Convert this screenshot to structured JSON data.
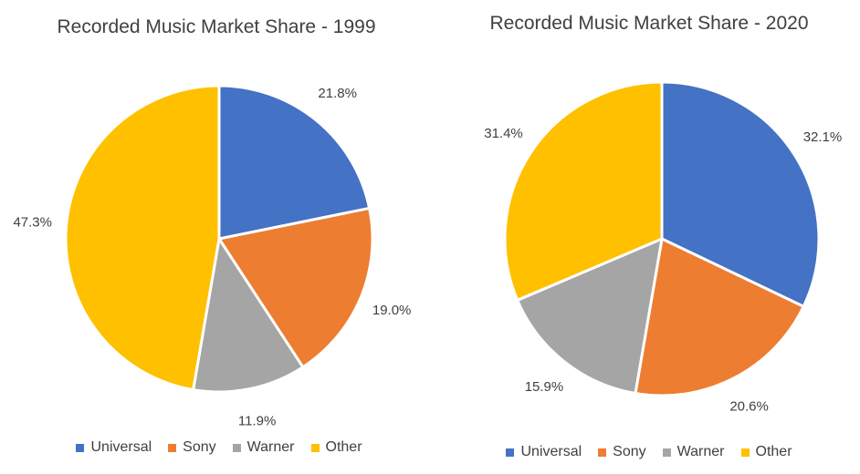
{
  "chart_data": [
    {
      "type": "pie",
      "title": "Recorded Music Market Share - 1999",
      "categories": [
        "Universal",
        "Sony",
        "Warner",
        "Other"
      ],
      "values": [
        21.8,
        19.0,
        11.9,
        47.3
      ],
      "data_labels": [
        "21.8%",
        "19.0%",
        "11.9%",
        "47.3%"
      ],
      "colors": [
        "#4472C4",
        "#ED7D31",
        "#A5A5A5",
        "#FFC000"
      ],
      "legend_position": "bottom"
    },
    {
      "type": "pie",
      "title": "Recorded Music Market Share - 2020",
      "categories": [
        "Universal",
        "Sony",
        "Warner",
        "Other"
      ],
      "values": [
        32.1,
        20.6,
        15.9,
        31.4
      ],
      "data_labels": [
        "32.1%",
        "20.6%",
        "15.9%",
        "31.4%"
      ],
      "colors": [
        "#4472C4",
        "#ED7D31",
        "#A5A5A5",
        "#FFC000"
      ],
      "legend_position": "bottom"
    }
  ]
}
